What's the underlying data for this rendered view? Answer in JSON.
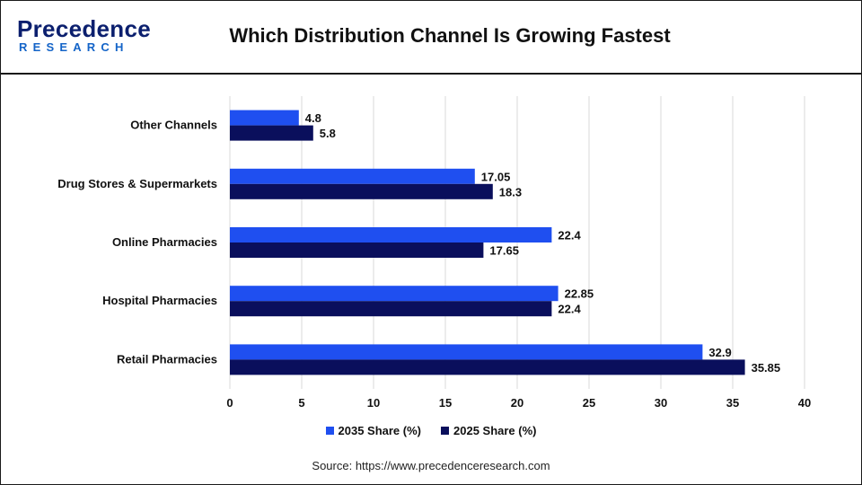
{
  "header": {
    "logo_main": "Precedence",
    "logo_sub": "RESEARCH",
    "title": "Which Distribution Channel Is Growing Fastest"
  },
  "source": "Source: https://www.precedenceresearch.com",
  "colors": {
    "series_2035": "#1f4ff0",
    "series_2025": "#0a0f5c",
    "grid": "#d9d9d9"
  },
  "chart_data": {
    "type": "bar",
    "orientation": "horizontal",
    "categories": [
      "Other Channels",
      "Drug Stores & Supermarkets",
      "Online Pharmacies",
      "Hospital Pharmacies",
      "Retail Pharmacies"
    ],
    "series": [
      {
        "name": "2035 Share (%)",
        "values": [
          4.8,
          17.05,
          22.4,
          22.85,
          32.9
        ],
        "value_labels": [
          "4.8",
          "17.05",
          "22.4",
          "22.85",
          "32.9"
        ]
      },
      {
        "name": "2025 Share (%)",
        "values": [
          5.8,
          18.3,
          17.65,
          22.4,
          35.85
        ],
        "value_labels": [
          "5.8",
          "18.3",
          "17.65",
          "22.4",
          "35.85"
        ]
      }
    ],
    "x_ticks": [
      "0",
      "5",
      "10",
      "15",
      "20",
      "25",
      "30",
      "35",
      "40"
    ],
    "xlim": [
      0,
      40
    ],
    "grid": true,
    "legend_position": "bottom"
  }
}
